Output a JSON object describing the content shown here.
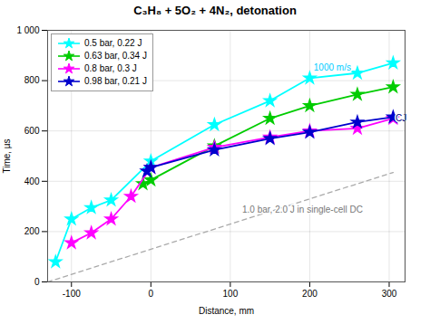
{
  "chart_data": {
    "type": "line",
    "title": "C₃H₈ + 5O₂ + 4N₂, detonation",
    "xlabel": "Distance, mm",
    "ylabel": "Time, µs",
    "xlim": [
      -130,
      320
    ],
    "ylim": [
      0,
      1000
    ],
    "xticks": [
      -100,
      0,
      100,
      200,
      300
    ],
    "yticks": [
      0,
      200,
      400,
      600,
      800,
      {
        "value": 1000,
        "label": "1 000"
      }
    ],
    "grid": true,
    "legend": "upper left",
    "series": [
      {
        "name": "0.5 bar, 0.22 J",
        "color": "#00ffff",
        "marker": "star",
        "line_style": "solid",
        "x": [
          -120,
          -100,
          -75,
          -50,
          0,
          80,
          150,
          200,
          260,
          305
        ],
        "values": [
          80,
          250,
          295,
          325,
          480,
          625,
          720,
          810,
          830,
          870
        ]
      },
      {
        "name": "0.63 bar, 0.34 J",
        "color": "#00cc00",
        "marker": "star",
        "line_style": "solid",
        "x": [
          -10,
          0,
          80,
          150,
          200,
          260,
          305
        ],
        "values": [
          390,
          405,
          540,
          650,
          700,
          745,
          775
        ]
      },
      {
        "name": "0.8 bar, 0.3 J",
        "color": "#ff00ff",
        "marker": "star",
        "line_style": "solid",
        "x": [
          -100,
          -75,
          -50,
          -25,
          0,
          80,
          150,
          200,
          260,
          305
        ],
        "values": [
          155,
          195,
          250,
          340,
          455,
          535,
          575,
          600,
          610,
          650
        ]
      },
      {
        "name": "0.98 bar, 0.21 J",
        "color": "#0000cc",
        "marker": "star",
        "line_style": "solid",
        "x": [
          -5,
          0,
          80,
          150,
          200,
          260,
          305
        ],
        "values": [
          440,
          455,
          525,
          570,
          595,
          635,
          655
        ]
      }
    ],
    "reference_line": {
      "x": [
        -130,
        305
      ],
      "values": [
        0,
        435
      ],
      "color": "#aaaaaa",
      "line_style": "dashed"
    },
    "annotations": [
      {
        "text": "1000 m/s",
        "x": 205,
        "y": 840,
        "color": "#00ccff"
      },
      {
        "text": "CJ",
        "x": 308,
        "y": 640,
        "color": "navy"
      },
      {
        "text": "1.0 bar, 2.0 J in single-cell DC",
        "x": 115,
        "y": 275,
        "color": "#777777"
      }
    ]
  }
}
